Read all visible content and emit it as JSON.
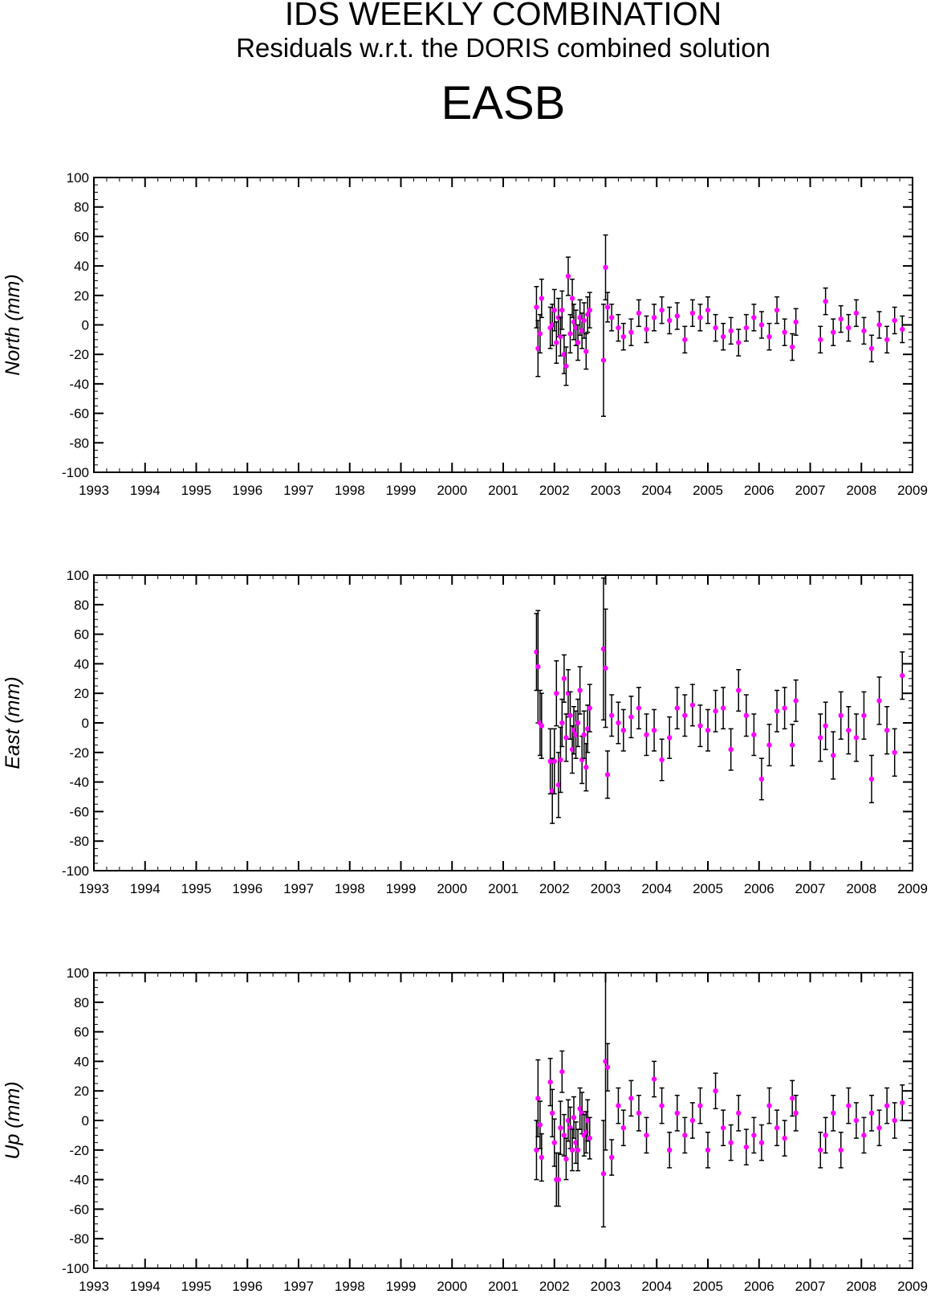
{
  "header": {
    "title": "IDS WEEKLY COMBINATION",
    "subtitle": "Residuals w.r.t. the DORIS combined solution",
    "station": "EASB"
  },
  "colors": {
    "marker": "#ff00ff",
    "errorbar": "#000000",
    "axis": "#000000"
  },
  "chart_data": [
    {
      "type": "scatter",
      "title": "",
      "xlabel": "",
      "ylabel": "North (mm)",
      "xlim": [
        1993,
        2009
      ],
      "ylim": [
        -100,
        100
      ],
      "xticks": [
        "1993",
        "1994",
        "1995",
        "1996",
        "1997",
        "1998",
        "1999",
        "2000",
        "2001",
        "2002",
        "2003",
        "2004",
        "2005",
        "2006",
        "2007",
        "2008",
        "2009"
      ],
      "yticks": [
        "100",
        "80",
        "60",
        "40",
        "20",
        "0",
        "-20",
        "-40",
        "-60",
        "-80",
        "-100"
      ],
      "error_bars": true,
      "series": [
        {
          "x": [
            2001.65,
            2001.68,
            2001.72,
            2001.75,
            2001.92,
            2001.96,
            2002.0,
            2002.04,
            2002.08,
            2002.12,
            2002.15,
            2002.19,
            2002.23,
            2002.27,
            2002.31,
            2002.35,
            2002.38,
            2002.42,
            2002.46,
            2002.5,
            2002.54,
            2002.58,
            2002.62,
            2002.65,
            2002.69,
            2002.96,
            2003.0,
            2003.04,
            2003.12,
            2003.25,
            2003.35,
            2003.5,
            2003.65,
            2003.8,
            2003.95,
            2004.1,
            2004.25,
            2004.4,
            2004.55,
            2004.7,
            2004.85,
            2005.0,
            2005.15,
            2005.3,
            2005.45,
            2005.6,
            2005.75,
            2005.9,
            2006.05,
            2006.2,
            2006.35,
            2006.5,
            2006.65,
            2006.72,
            2007.2,
            2007.3,
            2007.45,
            2007.6,
            2007.75,
            2007.9,
            2008.05,
            2008.2,
            2008.35,
            2008.5,
            2008.65,
            2008.8
          ],
          "y": [
            12,
            -16,
            -6,
            18,
            -2,
            0,
            10,
            -12,
            5,
            -8,
            10,
            -20,
            -28,
            33,
            -6,
            18,
            2,
            -2,
            -12,
            5,
            -4,
            3,
            -18,
            7,
            10,
            -24,
            39,
            12,
            5,
            -2,
            -8,
            -5,
            8,
            -3,
            5,
            10,
            3,
            6,
            -10,
            8,
            5,
            10,
            -2,
            -8,
            -4,
            -12,
            -2,
            5,
            0,
            -8,
            10,
            -5,
            -15,
            2,
            -10,
            16,
            -5,
            4,
            -2,
            8,
            -4,
            -16,
            0,
            -10,
            3,
            -3
          ],
          "err": [
            14,
            19,
            13,
            13,
            14,
            14,
            14,
            14,
            13,
            13,
            13,
            13,
            13,
            13,
            13,
            13,
            12,
            12,
            12,
            12,
            12,
            12,
            12,
            12,
            12,
            38,
            22,
            10,
            9,
            9,
            9,
            9,
            9,
            9,
            9,
            9,
            9,
            9,
            9,
            9,
            9,
            9,
            9,
            9,
            9,
            9,
            9,
            9,
            9,
            9,
            9,
            9,
            9,
            9,
            9,
            9,
            9,
            9,
            9,
            9,
            9,
            9,
            9,
            9,
            9,
            9
          ]
        }
      ]
    },
    {
      "type": "scatter",
      "title": "",
      "xlabel": "",
      "ylabel": "East (mm)",
      "xlim": [
        1993,
        2009
      ],
      "ylim": [
        -100,
        100
      ],
      "xticks": [
        "1993",
        "1994",
        "1995",
        "1996",
        "1997",
        "1998",
        "1999",
        "2000",
        "2001",
        "2002",
        "2003",
        "2004",
        "2005",
        "2006",
        "2007",
        "2008",
        "2009"
      ],
      "yticks": [
        "100",
        "80",
        "60",
        "40",
        "20",
        "0",
        "-20",
        "-40",
        "-60",
        "-80",
        "-100"
      ],
      "error_bars": true,
      "series": [
        {
          "x": [
            2001.65,
            2001.68,
            2001.72,
            2001.75,
            2001.92,
            2001.96,
            2002.0,
            2002.04,
            2002.08,
            2002.12,
            2002.15,
            2002.19,
            2002.23,
            2002.27,
            2002.31,
            2002.35,
            2002.38,
            2002.42,
            2002.46,
            2002.5,
            2002.54,
            2002.58,
            2002.62,
            2002.65,
            2002.69,
            2002.96,
            2003.0,
            2003.04,
            2003.12,
            2003.25,
            2003.35,
            2003.5,
            2003.65,
            2003.8,
            2003.95,
            2004.1,
            2004.25,
            2004.4,
            2004.55,
            2004.7,
            2004.85,
            2005.0,
            2005.15,
            2005.3,
            2005.45,
            2005.6,
            2005.75,
            2005.9,
            2006.05,
            2006.2,
            2006.35,
            2006.5,
            2006.65,
            2006.72,
            2007.2,
            2007.3,
            2007.45,
            2007.6,
            2007.75,
            2007.9,
            2008.05,
            2008.2,
            2008.35,
            2008.5,
            2008.65,
            2008.8
          ],
          "y": [
            48,
            38,
            0,
            -2,
            -26,
            -46,
            -26,
            20,
            -42,
            -25,
            0,
            30,
            -10,
            20,
            5,
            -18,
            -5,
            -8,
            0,
            22,
            -25,
            -8,
            -30,
            -4,
            10,
            50,
            37,
            -35,
            5,
            0,
            -5,
            4,
            10,
            -8,
            -5,
            -25,
            -10,
            10,
            5,
            12,
            -2,
            -5,
            8,
            10,
            -18,
            22,
            5,
            -8,
            -38,
            -15,
            8,
            10,
            -15,
            15,
            -10,
            -2,
            -22,
            5,
            -5,
            -10,
            5,
            -38,
            15,
            -5,
            -20,
            32
          ],
          "err": [
            26,
            38,
            22,
            22,
            22,
            22,
            22,
            22,
            22,
            22,
            16,
            16,
            16,
            16,
            16,
            16,
            16,
            16,
            16,
            16,
            16,
            16,
            16,
            16,
            16,
            48,
            40,
            16,
            14,
            14,
            14,
            14,
            14,
            14,
            14,
            14,
            14,
            14,
            14,
            14,
            14,
            14,
            14,
            14,
            14,
            14,
            14,
            14,
            14,
            14,
            14,
            14,
            14,
            14,
            16,
            16,
            16,
            16,
            16,
            16,
            16,
            16,
            16,
            16,
            16,
            16
          ]
        }
      ]
    },
    {
      "type": "scatter",
      "title": "",
      "xlabel": "",
      "ylabel": "Up (mm)",
      "xlim": [
        1993,
        2009
      ],
      "ylim": [
        -100,
        100
      ],
      "xticks": [
        "1993",
        "1994",
        "1995",
        "1996",
        "1997",
        "1998",
        "1999",
        "2000",
        "2001",
        "2002",
        "2003",
        "2004",
        "2005",
        "2006",
        "2007",
        "2008",
        "2009"
      ],
      "yticks": [
        "100",
        "80",
        "60",
        "40",
        "20",
        "0",
        "-20",
        "-40",
        "-60",
        "-80",
        "-100"
      ],
      "error_bars": true,
      "series": [
        {
          "x": [
            2001.65,
            2001.68,
            2001.72,
            2001.75,
            2001.92,
            2001.96,
            2002.0,
            2002.04,
            2002.08,
            2002.12,
            2002.15,
            2002.19,
            2002.23,
            2002.27,
            2002.31,
            2002.35,
            2002.38,
            2002.42,
            2002.46,
            2002.5,
            2002.54,
            2002.58,
            2002.62,
            2002.65,
            2002.69,
            2002.96,
            2003.0,
            2003.04,
            2003.12,
            2003.25,
            2003.35,
            2003.5,
            2003.65,
            2003.8,
            2003.95,
            2004.1,
            2004.25,
            2004.4,
            2004.55,
            2004.7,
            2004.85,
            2005.0,
            2005.15,
            2005.3,
            2005.45,
            2005.6,
            2005.75,
            2005.9,
            2006.05,
            2006.2,
            2006.35,
            2006.5,
            2006.65,
            2006.72,
            2007.2,
            2007.3,
            2007.45,
            2007.6,
            2007.75,
            2007.9,
            2008.05,
            2008.2,
            2008.35,
            2008.5,
            2008.65,
            2008.8
          ],
          "y": [
            -20,
            15,
            -3,
            -25,
            26,
            5,
            -15,
            -40,
            -40,
            -5,
            33,
            -10,
            -26,
            0,
            -5,
            -20,
            2,
            -15,
            -20,
            8,
            5,
            -10,
            -8,
            0,
            -12,
            -36,
            40,
            36,
            -25,
            10,
            -5,
            15,
            5,
            -10,
            28,
            10,
            -20,
            5,
            -10,
            0,
            10,
            -20,
            20,
            -5,
            -15,
            5,
            -18,
            -10,
            -15,
            10,
            -5,
            -12,
            15,
            5,
            -20,
            -10,
            5,
            -20,
            10,
            0,
            -10,
            5,
            -5,
            10,
            0,
            12
          ],
          "err": [
            20,
            26,
            16,
            16,
            16,
            16,
            16,
            18,
            18,
            18,
            14,
            14,
            14,
            14,
            14,
            14,
            14,
            14,
            14,
            14,
            14,
            14,
            14,
            14,
            14,
            36,
            60,
            16,
            12,
            12,
            12,
            12,
            12,
            12,
            12,
            12,
            12,
            12,
            12,
            12,
            12,
            12,
            12,
            12,
            12,
            12,
            12,
            12,
            12,
            12,
            12,
            12,
            12,
            12,
            12,
            12,
            12,
            12,
            12,
            12,
            12,
            12,
            12,
            12,
            12,
            12
          ]
        }
      ]
    }
  ]
}
